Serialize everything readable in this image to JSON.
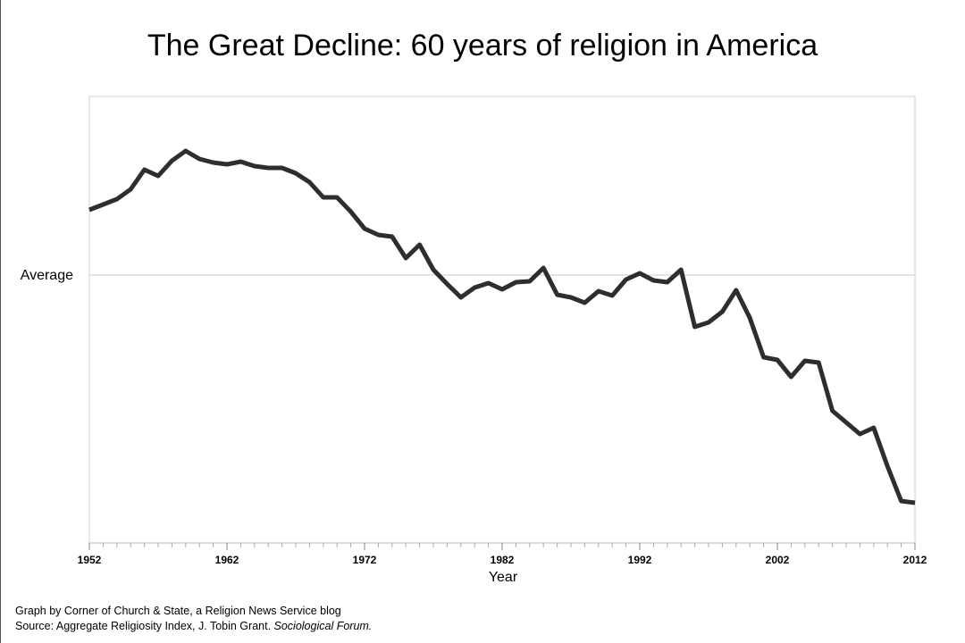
{
  "chart_data": {
    "type": "line",
    "title": "The Great Decline: 60 years of religion in America",
    "x_label": "Year",
    "x": [
      1952,
      1953,
      1954,
      1955,
      1956,
      1957,
      1958,
      1959,
      1960,
      1961,
      1962,
      1963,
      1964,
      1965,
      1966,
      1967,
      1968,
      1969,
      1970,
      1971,
      1972,
      1973,
      1974,
      1975,
      1976,
      1977,
      1978,
      1979,
      1980,
      1981,
      1982,
      1983,
      1984,
      1985,
      1986,
      1987,
      1988,
      1989,
      1990,
      1991,
      1992,
      1993,
      1994,
      1995,
      1996,
      1997,
      1998,
      1999,
      2000,
      2001,
      2002,
      2003,
      2004,
      2005,
      2006,
      2007,
      2008,
      2009,
      2010,
      2011,
      2012
    ],
    "values": [
      73,
      79,
      85,
      96,
      118,
      111,
      128,
      139,
      130,
      126,
      124,
      127,
      122,
      120,
      120,
      114,
      104,
      87,
      87,
      71,
      52,
      45,
      43,
      19,
      34,
      6,
      -10,
      -25,
      -14,
      -9,
      -16,
      -8,
      -7,
      8,
      -22,
      -25,
      -31,
      -18,
      -23,
      -5,
      2,
      -6,
      -8,
      6,
      -58,
      -53,
      -41,
      -17,
      -48,
      -92,
      -95,
      -114,
      -96,
      -98,
      -152,
      -165,
      -178,
      -171,
      -214,
      -253,
      -255
    ],
    "color": "#2e2e2e",
    "xlim": [
      1952,
      2012
    ],
    "xticks": [
      1952,
      1962,
      1972,
      1982,
      1992,
      2002,
      2012
    ],
    "ylim": [
      -300,
      200
    ],
    "yticks": [
      {
        "value": 0,
        "label": "Average"
      }
    ],
    "grid": true
  },
  "footer": {
    "credit": "Graph by Corner of Church & State, a Religion News Service blog",
    "source": "Source: Aggregate Religiosity Index, J. Tobin Grant. ",
    "source_publication": "Sociological Forum."
  }
}
